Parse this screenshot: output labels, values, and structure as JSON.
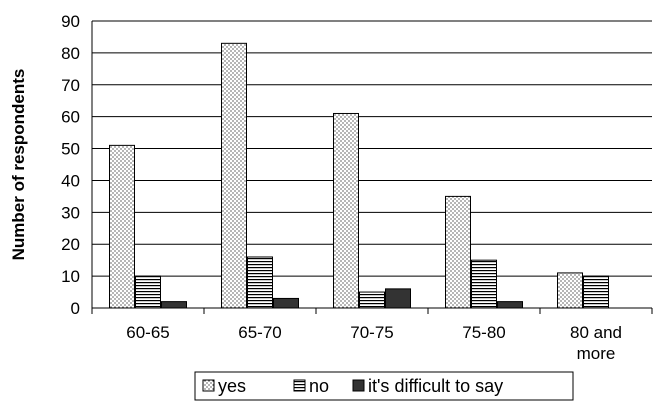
{
  "chart_data": {
    "type": "bar",
    "title": "",
    "xlabel": "",
    "ylabel": "Number of respondents",
    "ylim": [
      0,
      90
    ],
    "yticks": [
      0,
      10,
      20,
      30,
      40,
      50,
      60,
      70,
      80,
      90
    ],
    "grid": "horizontal",
    "legend_position": "bottom",
    "categories": [
      [
        "60-65"
      ],
      [
        "65-70"
      ],
      [
        "70-75"
      ],
      [
        "75-80"
      ],
      [
        "80 and",
        "more"
      ]
    ],
    "series": [
      {
        "name": "yes",
        "pattern": "dots",
        "color": "#ffffff",
        "values": [
          51,
          83,
          61,
          35,
          11
        ]
      },
      {
        "name": "no",
        "pattern": "horizontal-lines",
        "color": "#ffffff",
        "values": [
          10,
          16,
          5,
          15,
          10
        ]
      },
      {
        "name": "it's difficult to say",
        "pattern": "solid",
        "color": "#333333",
        "values": [
          2,
          3,
          6,
          2,
          0
        ]
      }
    ]
  }
}
